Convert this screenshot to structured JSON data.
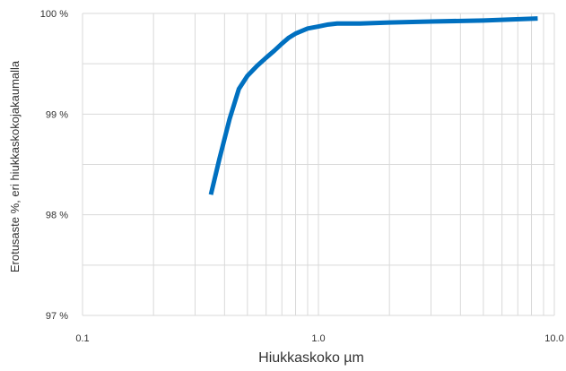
{
  "chart_data": {
    "type": "line",
    "xlabel": "Hiukkaskoko µm",
    "ylabel": "Erotusaste %, eri hiukkaskokojakaumalla",
    "x_scale": "log",
    "xlim": [
      0.1,
      10.0
    ],
    "ylim": [
      97,
      100
    ],
    "x_ticks": [
      "0.1",
      "1.0",
      "10.0"
    ],
    "y_ticks": [
      "97 %",
      "98 %",
      "99 %",
      "100 %"
    ],
    "grid": true,
    "series": [
      {
        "color": "#0070c0",
        "x": [
          0.35,
          0.38,
          0.42,
          0.46,
          0.5,
          0.55,
          0.6,
          0.65,
          0.7,
          0.75,
          0.8,
          0.9,
          1.0,
          1.1,
          1.2,
          1.5,
          2.0,
          3.0,
          5.0,
          8.5
        ],
        "y": [
          98.2,
          98.55,
          98.95,
          99.25,
          99.38,
          99.48,
          99.56,
          99.63,
          99.7,
          99.76,
          99.8,
          99.85,
          99.87,
          99.89,
          99.9,
          99.9,
          99.91,
          99.92,
          99.93,
          99.95
        ]
      }
    ]
  }
}
